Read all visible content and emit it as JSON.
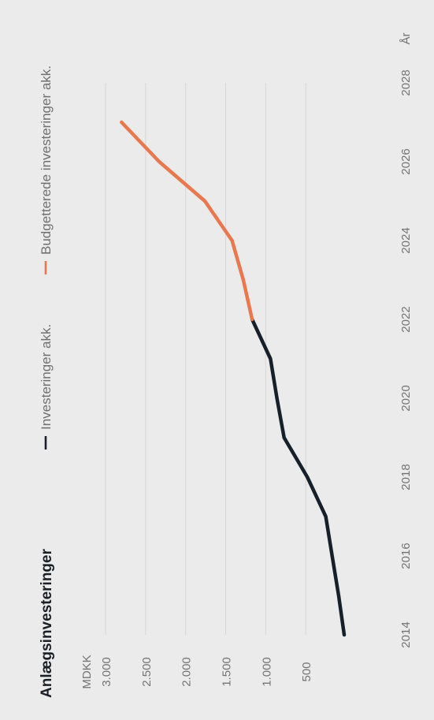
{
  "chart_data": {
    "type": "line",
    "title": "Anlægsinvesteringer",
    "ylabel": "MDKK",
    "xlabel": "År",
    "xlim": [
      2014,
      2028
    ],
    "ylim": [
      0,
      3000
    ],
    "x_ticks": [
      "2014",
      "2016",
      "2018",
      "2020",
      "2022",
      "2024",
      "2026",
      "2028"
    ],
    "y_ticks": [
      "500",
      "1.000",
      "1.500",
      "2.000",
      "2.500",
      "3.000"
    ],
    "y_tick_values": [
      500,
      1000,
      1500,
      2000,
      2500,
      3000
    ],
    "grid": true,
    "legend_placement": "top",
    "series": [
      {
        "name": "Investeringer akk.",
        "color": "#16202b",
        "x": [
          2014,
          2015,
          2016,
          2017,
          2018,
          2019,
          2020,
          2021,
          2022
        ],
        "y": [
          20,
          90,
          170,
          250,
          480,
          770,
          860,
          940,
          1170
        ]
      },
      {
        "name": "Budgetterede investeringer akk.",
        "color": "#e9784f",
        "x": [
          2022,
          2023,
          2024,
          2025,
          2026,
          2027
        ],
        "y": [
          1170,
          1280,
          1420,
          1760,
          2330,
          2800
        ]
      }
    ]
  }
}
